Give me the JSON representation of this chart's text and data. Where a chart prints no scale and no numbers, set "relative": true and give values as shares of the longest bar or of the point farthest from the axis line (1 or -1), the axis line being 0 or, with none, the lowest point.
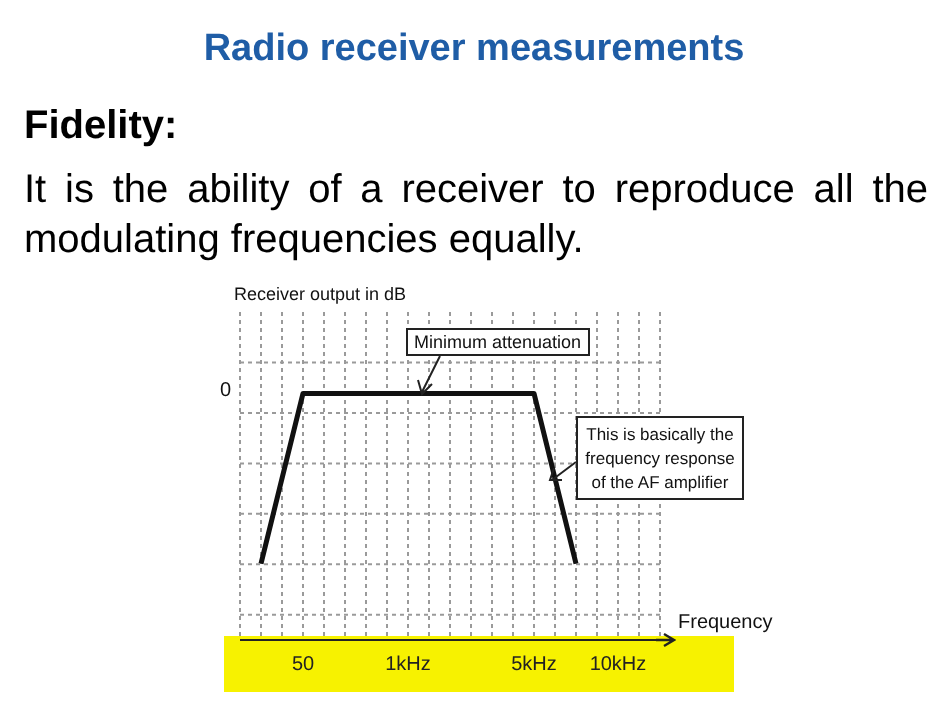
{
  "chart_data": {
    "type": "line",
    "title": "Radio receiver measurements",
    "subtitle": "Fidelity:",
    "ylabel": "Receiver output in dB",
    "xlabel": "Frequency",
    "categories": [
      null,
      null,
      "50",
      null,
      null,
      null,
      null,
      "1kHz",
      null,
      null,
      null,
      null,
      null,
      "5kHz",
      null,
      null,
      null,
      "10kHz",
      null,
      null
    ],
    "series": [
      {
        "color": "#111111",
        "values": [
          0.31,
          null,
          1,
          null,
          null,
          null,
          null,
          null,
          null,
          null,
          null,
          null,
          null,
          1,
          null,
          0.31,
          null,
          null,
          null,
          null
        ]
      }
    ],
    "relative": true,
    "grid": true,
    "legend": false,
    "marker": "none",
    "line_style": "solid",
    "annotations": [
      "It is the ability of a receiver to reproduce all the modulating frequencies equally.",
      "Minimum attenuation",
      "This is basically the frequency response of the AF amplifier",
      "0"
    ]
  }
}
